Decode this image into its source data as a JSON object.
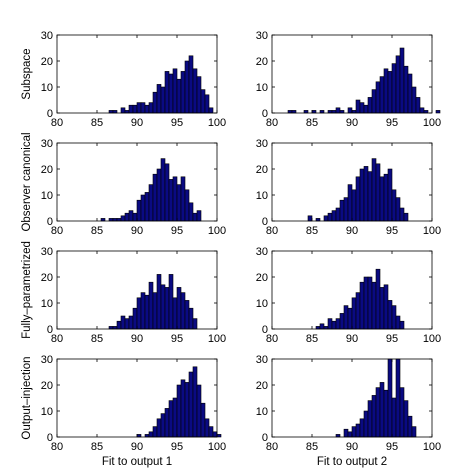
{
  "chart_data": [
    {
      "type": "bar",
      "ylabel": "Subspace",
      "xlabel": "",
      "xlim": [
        80,
        100
      ],
      "ylim": [
        0,
        30
      ],
      "xticks": [
        80,
        85,
        90,
        95,
        100
      ],
      "yticks": [
        0,
        10,
        20,
        30
      ],
      "bin_start": 86.5,
      "bin_width": 0.5,
      "values": [
        1,
        1,
        0,
        2,
        1,
        3,
        3,
        4,
        4,
        3,
        4,
        8,
        11,
        10,
        16,
        15,
        17,
        13,
        16,
        20,
        22,
        17,
        14,
        9,
        7,
        2
      ]
    },
    {
      "type": "bar",
      "ylabel": "",
      "xlabel": "",
      "xlim": [
        80,
        100
      ],
      "ylim": [
        0,
        30
      ],
      "xticks": [
        80,
        85,
        90,
        95,
        100
      ],
      "yticks": [
        0,
        10,
        20,
        30
      ],
      "bin_start": 82.0,
      "bin_width": 0.5,
      "values": [
        1,
        1,
        0,
        0,
        1,
        0,
        1,
        0,
        1,
        0,
        1,
        1,
        2,
        1,
        0,
        2,
        1,
        5,
        4,
        3,
        6,
        9,
        12,
        14,
        17,
        16,
        19,
        22,
        25,
        18,
        15,
        10,
        6,
        2,
        1,
        0,
        0,
        1
      ]
    },
    {
      "type": "bar",
      "ylabel": "Observer canonical",
      "xlabel": "",
      "xlim": [
        80,
        100
      ],
      "ylim": [
        0,
        30
      ],
      "xticks": [
        80,
        85,
        90,
        95,
        100
      ],
      "yticks": [
        0,
        10,
        20,
        30
      ],
      "bin_start": 85.5,
      "bin_width": 0.5,
      "values": [
        1,
        0,
        1,
        1,
        1,
        2,
        3,
        4,
        3,
        8,
        10,
        11,
        14,
        18,
        20,
        24,
        22,
        16,
        17,
        14,
        17,
        12,
        7,
        3,
        4
      ]
    },
    {
      "type": "bar",
      "ylabel": "",
      "xlabel": "",
      "xlim": [
        80,
        100
      ],
      "ylim": [
        0,
        30
      ],
      "xticks": [
        80,
        85,
        90,
        95,
        100
      ],
      "yticks": [
        0,
        10,
        20,
        30
      ],
      "bin_start": 84.5,
      "bin_width": 0.5,
      "values": [
        2,
        0,
        1,
        0,
        2,
        3,
        4,
        5,
        8,
        9,
        14,
        12,
        17,
        20,
        21,
        19,
        24,
        22,
        17,
        18,
        20,
        12,
        9,
        5,
        3
      ]
    },
    {
      "type": "bar",
      "ylabel": "Fully–parametrized",
      "xlabel": "",
      "xlim": [
        80,
        100
      ],
      "ylim": [
        0,
        30
      ],
      "xticks": [
        80,
        85,
        90,
        95,
        100
      ],
      "yticks": [
        0,
        10,
        20,
        30
      ],
      "bin_start": 86.5,
      "bin_width": 0.5,
      "values": [
        1,
        1,
        3,
        5,
        4,
        5,
        8,
        12,
        14,
        13,
        18,
        14,
        21,
        17,
        16,
        21,
        12,
        16,
        14,
        11,
        8,
        4
      ]
    },
    {
      "type": "bar",
      "ylabel": "",
      "xlabel": "",
      "xlim": [
        80,
        100
      ],
      "ylim": [
        0,
        30
      ],
      "xticks": [
        80,
        85,
        90,
        95,
        100
      ],
      "yticks": [
        0,
        10,
        20,
        30
      ],
      "bin_start": 85.5,
      "bin_width": 0.5,
      "values": [
        1,
        2,
        1,
        4,
        3,
        4,
        6,
        9,
        8,
        12,
        14,
        18,
        20,
        20,
        18,
        23,
        16,
        17,
        11,
        9,
        5,
        3
      ]
    },
    {
      "type": "bar",
      "ylabel": "Output–injection",
      "xlabel": "Fit to output 1",
      "xlim": [
        80,
        100
      ],
      "ylim": [
        0,
        30
      ],
      "xticks": [
        80,
        85,
        90,
        95,
        100
      ],
      "yticks": [
        0,
        10,
        20,
        30
      ],
      "bin_start": 90.0,
      "bin_width": 0.5,
      "values": [
        1,
        0,
        1,
        2,
        4,
        7,
        9,
        11,
        14,
        15,
        20,
        22,
        21,
        25,
        27,
        20,
        13,
        7,
        4,
        2,
        1
      ]
    },
    {
      "type": "bar",
      "ylabel": "",
      "xlabel": "Fit to output 2",
      "xlim": [
        80,
        100
      ],
      "ylim": [
        0,
        30
      ],
      "xticks": [
        80,
        85,
        90,
        95,
        100
      ],
      "yticks": [
        0,
        10,
        20,
        30
      ],
      "bin_start": 88.0,
      "bin_width": 0.5,
      "values": [
        1,
        0,
        3,
        2,
        4,
        5,
        7,
        10,
        14,
        16,
        19,
        21,
        18,
        30,
        15,
        30,
        19,
        14,
        8,
        4
      ]
    }
  ],
  "colors": {
    "bar_fill": "#0a0a82",
    "bar_edge": "#000000",
    "axis": "#000000",
    "background": "#ffffff"
  }
}
